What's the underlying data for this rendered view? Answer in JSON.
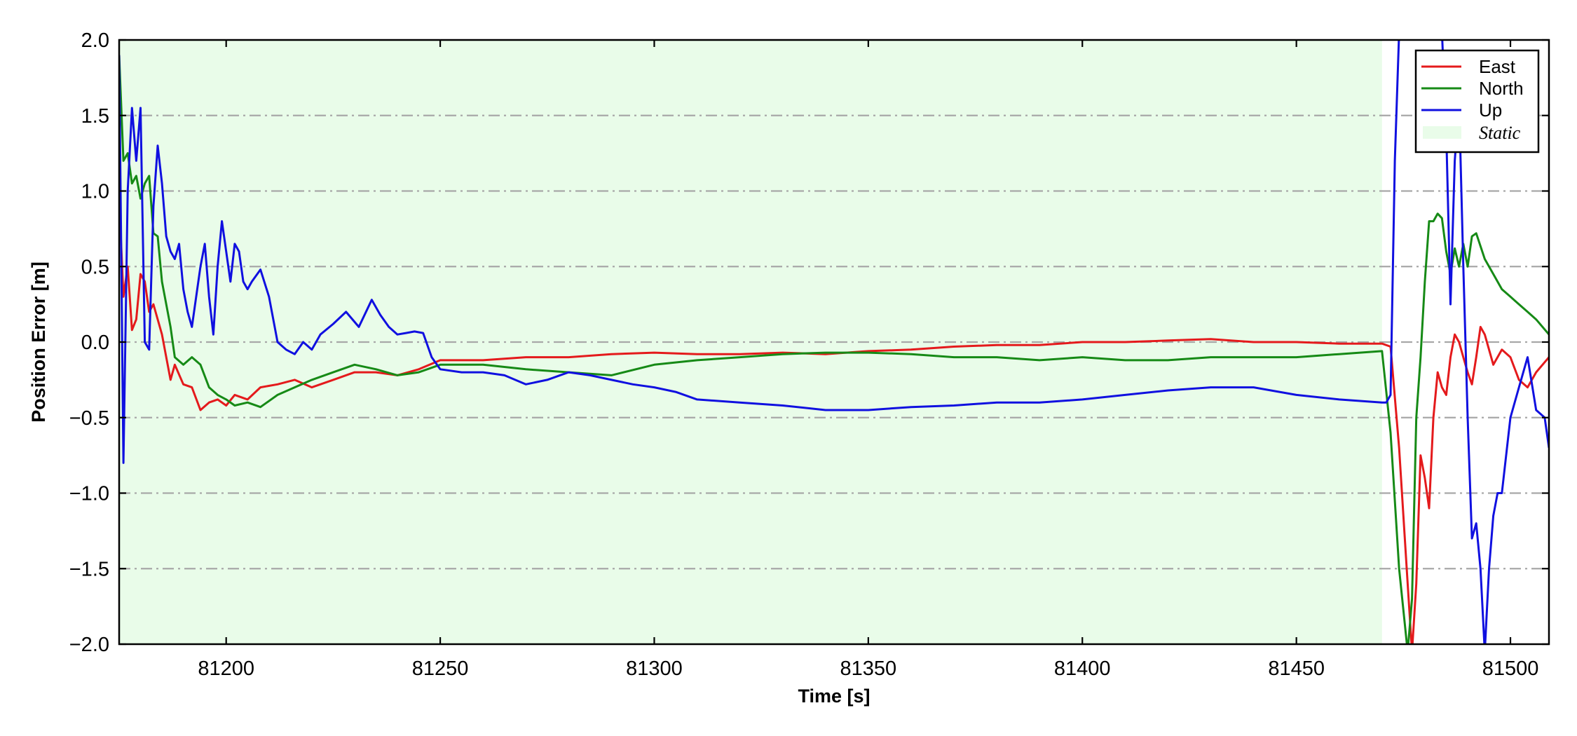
{
  "chart_data": {
    "type": "line",
    "title": "",
    "xlabel": "Time [s]",
    "ylabel": "Position Error [m]",
    "xlim": [
      81175,
      81509
    ],
    "ylim": [
      -2.0,
      2.0
    ],
    "xticks": [
      81200,
      81250,
      81300,
      81350,
      81400,
      81450,
      81500
    ],
    "yticks": [
      -2.0,
      -1.5,
      -1.0,
      -0.5,
      0.0,
      0.5,
      1.0,
      1.5,
      2.0
    ],
    "xtick_labels": [
      "81200",
      "81250",
      "81300",
      "81350",
      "81400",
      "81450",
      "81500"
    ],
    "ytick_labels": [
      "−2.0",
      "−1.5",
      "−1.0",
      "−0.5",
      "0.0",
      "0.5",
      "1.0",
      "1.5",
      "2.0"
    ],
    "grid": "horizontal dash-dot",
    "legend_position": "top-right",
    "shaded_regions": [
      {
        "name": "Static",
        "x_start": 81175,
        "x_end": 81470,
        "color": "#e9fce9"
      }
    ],
    "series": [
      {
        "name": "East",
        "color": "#e41a1c",
        "x": [
          81175,
          81176,
          81177,
          81178,
          81179,
          81180,
          81181,
          81182,
          81183,
          81184,
          81185,
          81186,
          81187,
          81188,
          81190,
          81192,
          81194,
          81196,
          81198,
          81200,
          81202,
          81205,
          81208,
          81212,
          81216,
          81220,
          81225,
          81230,
          81235,
          81240,
          81245,
          81250,
          81260,
          81270,
          81280,
          81290,
          81300,
          81310,
          81320,
          81330,
          81340,
          81350,
          81360,
          81370,
          81380,
          81390,
          81400,
          81410,
          81420,
          81430,
          81440,
          81450,
          81460,
          81470,
          81472,
          81474,
          81476,
          81477,
          81478,
          81479,
          81480,
          81481,
          81482,
          81483,
          81484,
          81485,
          81486,
          81487,
          81488,
          81489,
          81490,
          81491,
          81492,
          81493,
          81494,
          81496,
          81498,
          81500,
          81502,
          81504,
          81506,
          81509
        ],
        "y": [
          0.95,
          0.3,
          0.5,
          0.08,
          0.15,
          0.45,
          0.4,
          0.2,
          0.25,
          0.15,
          0.05,
          -0.1,
          -0.25,
          -0.15,
          -0.28,
          -0.3,
          -0.45,
          -0.4,
          -0.38,
          -0.42,
          -0.35,
          -0.38,
          -0.3,
          -0.28,
          -0.25,
          -0.3,
          -0.25,
          -0.2,
          -0.2,
          -0.22,
          -0.18,
          -0.12,
          -0.12,
          -0.1,
          -0.1,
          -0.08,
          -0.07,
          -0.08,
          -0.08,
          -0.07,
          -0.08,
          -0.06,
          -0.05,
          -0.03,
          -0.02,
          -0.02,
          0.0,
          0.0,
          0.01,
          0.02,
          0.0,
          0.0,
          -0.01,
          -0.01,
          -0.03,
          -0.7,
          -1.6,
          -2.05,
          -1.6,
          -0.75,
          -0.9,
          -1.1,
          -0.5,
          -0.2,
          -0.3,
          -0.35,
          -0.1,
          0.05,
          0.0,
          -0.1,
          -0.2,
          -0.28,
          -0.1,
          0.1,
          0.05,
          -0.15,
          -0.05,
          -0.1,
          -0.25,
          -0.3,
          -0.2,
          -0.1
        ]
      },
      {
        "name": "North",
        "color": "#168a16",
        "x": [
          81175,
          81176,
          81177,
          81178,
          81179,
          81180,
          81181,
          81182,
          81183,
          81184,
          81185,
          81186,
          81187,
          81188,
          81190,
          81192,
          81194,
          81196,
          81198,
          81200,
          81202,
          81205,
          81208,
          81212,
          81216,
          81220,
          81225,
          81230,
          81235,
          81240,
          81245,
          81250,
          81260,
          81270,
          81280,
          81290,
          81300,
          81310,
          81320,
          81330,
          81340,
          81350,
          81360,
          81370,
          81380,
          81390,
          81400,
          81410,
          81420,
          81430,
          81440,
          81450,
          81460,
          81470,
          81472,
          81474,
          81476,
          81477,
          81478,
          81479,
          81480,
          81481,
          81482,
          81483,
          81484,
          81485,
          81486,
          81487,
          81488,
          81489,
          81490,
          81491,
          81492,
          81494,
          81496,
          81498,
          81500,
          81502,
          81504,
          81506,
          81509
        ],
        "y": [
          1.9,
          1.2,
          1.25,
          1.05,
          1.1,
          0.95,
          1.05,
          1.1,
          0.72,
          0.7,
          0.4,
          0.25,
          0.1,
          -0.1,
          -0.15,
          -0.1,
          -0.15,
          -0.3,
          -0.35,
          -0.38,
          -0.42,
          -0.4,
          -0.43,
          -0.35,
          -0.3,
          -0.25,
          -0.2,
          -0.15,
          -0.18,
          -0.22,
          -0.2,
          -0.15,
          -0.15,
          -0.18,
          -0.2,
          -0.22,
          -0.15,
          -0.12,
          -0.1,
          -0.08,
          -0.07,
          -0.07,
          -0.08,
          -0.1,
          -0.1,
          -0.12,
          -0.1,
          -0.12,
          -0.12,
          -0.1,
          -0.1,
          -0.1,
          -0.08,
          -0.06,
          -0.6,
          -1.5,
          -2.05,
          -1.7,
          -0.5,
          -0.1,
          0.4,
          0.8,
          0.8,
          0.85,
          0.82,
          0.6,
          0.45,
          0.62,
          0.5,
          0.65,
          0.5,
          0.7,
          0.72,
          0.55,
          0.45,
          0.35,
          0.3,
          0.25,
          0.2,
          0.15,
          0.05
        ]
      },
      {
        "name": "Up",
        "color": "#1010e0",
        "x": [
          81175,
          81176,
          81177,
          81178,
          81179,
          81180,
          81181,
          81182,
          81183,
          81184,
          81185,
          81186,
          81187,
          81188,
          81189,
          81190,
          81191,
          81192,
          81193,
          81194,
          81195,
          81196,
          81197,
          81198,
          81199,
          81200,
          81201,
          81202,
          81203,
          81204,
          81205,
          81206,
          81208,
          81210,
          81212,
          81214,
          81216,
          81218,
          81220,
          81222,
          81225,
          81228,
          81231,
          81234,
          81236,
          81238,
          81240,
          81242,
          81244,
          81246,
          81248,
          81250,
          81255,
          81260,
          81265,
          81270,
          81275,
          81280,
          81285,
          81290,
          81295,
          81300,
          81305,
          81310,
          81320,
          81330,
          81340,
          81350,
          81360,
          81370,
          81380,
          81390,
          81400,
          81410,
          81420,
          81430,
          81440,
          81450,
          81460,
          81470,
          81471,
          81472,
          81473,
          81474,
          81475,
          81476,
          81477,
          81478,
          81479,
          81480,
          81481,
          81482,
          81483,
          81484,
          81485,
          81486,
          81487,
          81488,
          81489,
          81490,
          81491,
          81492,
          81493,
          81494,
          81495,
          81496,
          81497,
          81498,
          81500,
          81502,
          81504,
          81506,
          81508,
          81509
        ],
        "y": [
          1.9,
          -0.8,
          1.0,
          1.55,
          1.2,
          1.55,
          0.0,
          -0.05,
          0.9,
          1.3,
          1.05,
          0.7,
          0.6,
          0.55,
          0.65,
          0.35,
          0.2,
          0.1,
          0.3,
          0.5,
          0.65,
          0.3,
          0.05,
          0.5,
          0.8,
          0.6,
          0.4,
          0.65,
          0.6,
          0.4,
          0.35,
          0.4,
          0.48,
          0.3,
          0.0,
          -0.05,
          -0.08,
          0.0,
          -0.05,
          0.05,
          0.12,
          0.2,
          0.1,
          0.28,
          0.18,
          0.1,
          0.05,
          0.06,
          0.07,
          0.06,
          -0.1,
          -0.18,
          -0.2,
          -0.2,
          -0.22,
          -0.28,
          -0.25,
          -0.2,
          -0.22,
          -0.25,
          -0.28,
          -0.3,
          -0.33,
          -0.38,
          -0.4,
          -0.42,
          -0.45,
          -0.45,
          -0.43,
          -0.42,
          -0.4,
          -0.4,
          -0.38,
          -0.35,
          -0.32,
          -0.3,
          -0.3,
          -0.35,
          -0.38,
          -0.4,
          -0.4,
          -0.35,
          1.2,
          2.05,
          2.05,
          2.05,
          2.05,
          2.05,
          2.05,
          2.05,
          2.05,
          2.05,
          2.05,
          2.05,
          1.4,
          0.25,
          1.2,
          1.6,
          0.5,
          -0.5,
          -1.3,
          -1.2,
          -1.5,
          -2.05,
          -1.5,
          -1.15,
          -1.0,
          -1.0,
          -0.5,
          -0.3,
          -0.1,
          -0.45,
          -0.5,
          -0.7
        ]
      }
    ]
  },
  "legend": {
    "items": [
      {
        "label": "East",
        "color": "#e41a1c",
        "kind": "line"
      },
      {
        "label": "North",
        "color": "#168a16",
        "kind": "line"
      },
      {
        "label": "Up",
        "color": "#1010e0",
        "kind": "line"
      },
      {
        "label": "Static",
        "color": "#e9fce9",
        "kind": "patch"
      }
    ]
  }
}
